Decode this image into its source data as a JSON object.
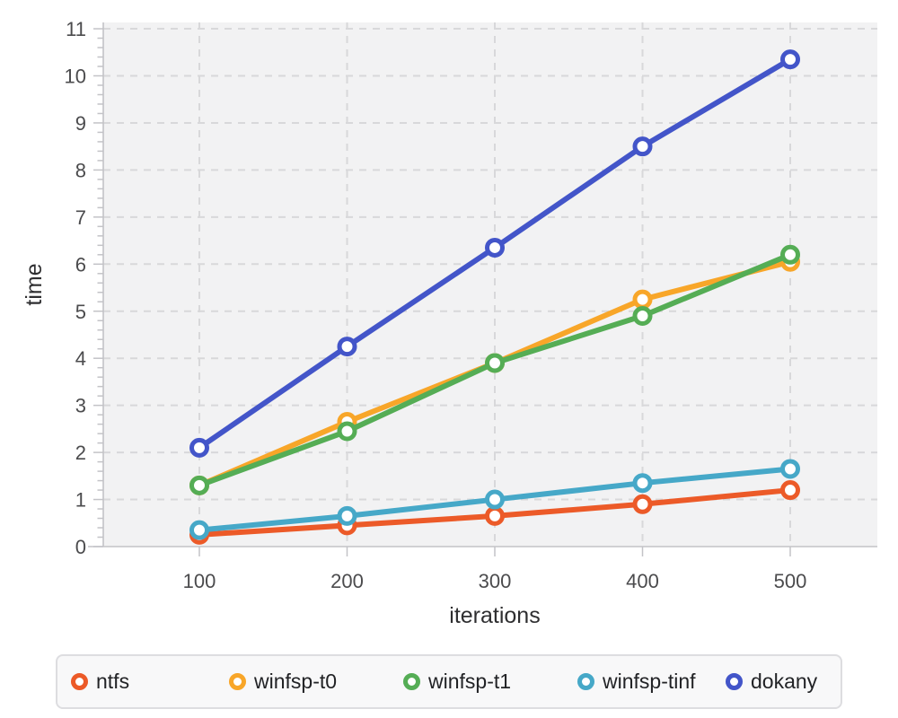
{
  "chart_data": {
    "type": "line",
    "title": "",
    "xlabel": "iterations",
    "ylabel": "time",
    "x": [
      100,
      200,
      300,
      400,
      500
    ],
    "xticks": [
      100,
      200,
      300,
      400,
      500
    ],
    "yticks": [
      0,
      1,
      2,
      3,
      4,
      5,
      6,
      7,
      8,
      9,
      10,
      11
    ],
    "xlim": [
      35,
      559
    ],
    "ylim": [
      0,
      11.15
    ],
    "grid": true,
    "grid_style": "dashed",
    "legend_position": "bottom",
    "marker": "open-circle",
    "colors": {
      "plot_background": "#f2f2f3",
      "page_background": "#ffffff",
      "grid": "#d8d8da",
      "axis": "#c3c3c7",
      "tick_label": "#4b4b4d",
      "axis_label": "#2e2e30",
      "legend_text": "#222326",
      "legend_border": "#dddde0",
      "legend_background": "#f8f8f9"
    },
    "series": [
      {
        "name": "ntfs",
        "color": "#ec5a28",
        "values": [
          0.25,
          0.45,
          0.65,
          0.9,
          1.2
        ]
      },
      {
        "name": "winfsp-t0",
        "color": "#f8a629",
        "values": [
          1.3,
          2.65,
          3.9,
          5.25,
          6.05
        ]
      },
      {
        "name": "winfsp-t1",
        "color": "#55ad55",
        "values": [
          1.3,
          2.45,
          3.9,
          4.9,
          6.2
        ]
      },
      {
        "name": "winfsp-tinf",
        "color": "#46a8c8",
        "values": [
          0.35,
          0.65,
          1.0,
          1.35,
          1.65
        ]
      },
      {
        "name": "dokany",
        "color": "#4355c9",
        "values": [
          2.1,
          4.25,
          6.35,
          8.5,
          10.35
        ]
      }
    ]
  },
  "legend": {
    "items": [
      "ntfs",
      "winfsp-t0",
      "winfsp-t1",
      "winfsp-tinf",
      "dokany"
    ]
  }
}
